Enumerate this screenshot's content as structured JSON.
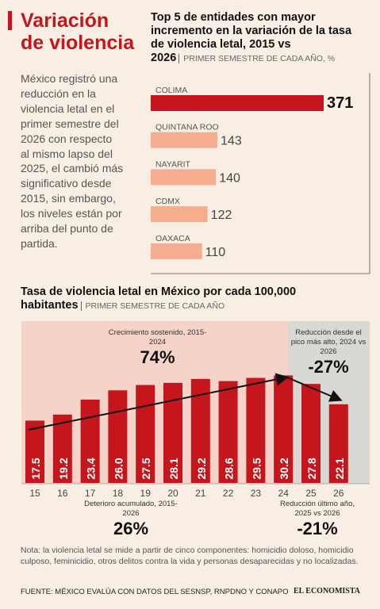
{
  "header": {
    "lines": [
      "Variación",
      "de violencia"
    ]
  },
  "intro": {
    "lines": [
      "México registró una",
      "reducción en la",
      "violencia letal en el",
      "primer semestre del",
      "2026 con respecto",
      "al mismo lapso del",
      "2025, el cambió más",
      "significativo desde",
      "2015, sin embargo,",
      "los niveles están por",
      "arriba del punto de",
      "partida."
    ]
  },
  "chart_data": [
    {
      "type": "hbar",
      "title": "Top 5 de entidades con mayor incremento en la variación de la tasa de violencia letal, 2015 vs 2026",
      "subtitle": "PRIMER SEMESTRE DE CADA AÑO, %",
      "categories": [
        "COLIMA",
        "QUINTANA ROO",
        "NAYARIT",
        "CDMX",
        "OAXACA"
      ],
      "values": [
        371,
        143,
        140,
        122,
        110
      ],
      "colors": [
        "#c4161c",
        "#f6ad8f",
        "#f6ad8f",
        "#f6ad8f",
        "#f6ad8f"
      ]
    },
    {
      "type": "bar",
      "title": "Tasa de violencia letal en México por cada 100,000 habitantes",
      "subtitle": "PRIMER SEMESTRE DE CADA AÑO",
      "categories": [
        "15",
        "16",
        "17",
        "18",
        "19",
        "20",
        "21",
        "22",
        "23",
        "24",
        "25",
        "26"
      ],
      "values": [
        17.5,
        19.2,
        23.4,
        26.0,
        27.5,
        28.1,
        29.2,
        28.6,
        29.5,
        30.2,
        27.8,
        22.1
      ],
      "value_labels": [
        "17.5",
        "19.2",
        "23.4",
        "26.0",
        "27.5",
        "28.1",
        "29.2",
        "28.6",
        "29.5",
        "30.2",
        "27.8",
        "22.1"
      ],
      "color": "#c4161c",
      "annotations": [
        {
          "text": "Crecimiento sostenido, 2015-2024",
          "value": "74%"
        },
        {
          "text": "Reducción desde el pico más alto, 2024 vs 2026",
          "value": "-27%"
        },
        {
          "text": "Deterioro acumulado, 2015-2026",
          "value": "26%"
        },
        {
          "text": "Reducción último año, 2025 vs 2026",
          "value": "-21%"
        }
      ]
    }
  ],
  "note": "Nota: la violencia letal se mide a partir de cinco componentes: homicidio doloso, homicidio culposo, feminicidio, otros delitos contra la vida y personas desaparecidas y no localizadas.",
  "source": "FUENTE: MÉXICO EVALÚA CON DATOS DEL SESNSP, RNPDNO Y CONAPO",
  "brand": "EL ECONOMISTA"
}
